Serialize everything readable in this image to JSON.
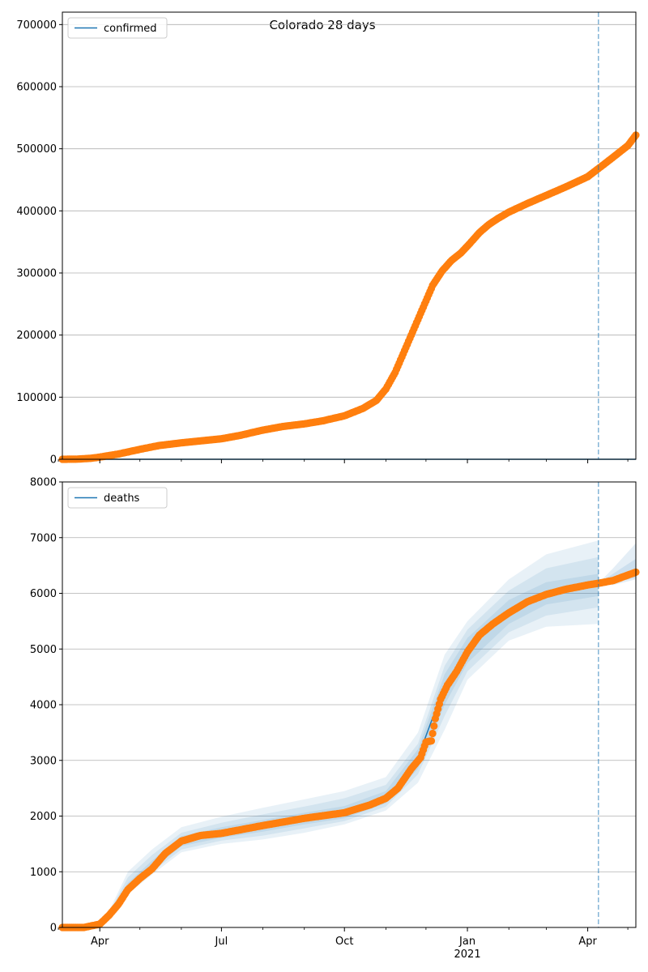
{
  "title": "Colorado 28 days",
  "colors": {
    "observed": "#ff7f0e",
    "fit": "#1f77b4",
    "band": "#1f77b4",
    "grid": "#b0b0b0",
    "axis": "#000000"
  },
  "x_axis": {
    "ticks": [
      {
        "date": "2020-04-01",
        "label": "Apr",
        "sub": ""
      },
      {
        "date": "2020-07-01",
        "label": "Jul",
        "sub": ""
      },
      {
        "date": "2020-10-01",
        "label": "Oct",
        "sub": ""
      },
      {
        "date": "2021-01-01",
        "label": "Jan",
        "sub": "2021"
      },
      {
        "date": "2021-04-01",
        "label": "Apr",
        "sub": ""
      }
    ],
    "minor_ticks": [
      "2020-03-01",
      "2020-05-01",
      "2020-06-01",
      "2020-08-01",
      "2020-09-01",
      "2020-11-01",
      "2020-12-01",
      "2021-02-01",
      "2021-03-01",
      "2021-05-01"
    ],
    "range": [
      "2020-03-04",
      "2021-05-07"
    ]
  },
  "chart_data": [
    {
      "type": "line",
      "legend": [
        "confirmed"
      ],
      "legend_position": "upper-left",
      "grid": "y",
      "ylim": [
        0,
        720000
      ],
      "yticks": [
        0,
        100000,
        200000,
        300000,
        400000,
        500000,
        600000,
        700000
      ],
      "vline": "2021-04-09",
      "series": [
        {
          "name": "confirmed",
          "role": "fit",
          "points": [
            [
              "2020-03-04",
              0
            ],
            [
              "2021-05-07",
              0
            ]
          ]
        },
        {
          "role": "observed",
          "points": [
            [
              "2020-03-04",
              0
            ],
            [
              "2020-03-15",
              200
            ],
            [
              "2020-03-25",
              1500
            ],
            [
              "2020-04-01",
              3500
            ],
            [
              "2020-04-15",
              8500
            ],
            [
              "2020-05-01",
              16000
            ],
            [
              "2020-05-15",
              22000
            ],
            [
              "2020-06-01",
              26500
            ],
            [
              "2020-06-15",
              29500
            ],
            [
              "2020-07-01",
              33000
            ],
            [
              "2020-07-15",
              38500
            ],
            [
              "2020-08-01",
              47000
            ],
            [
              "2020-08-15",
              52500
            ],
            [
              "2020-09-01",
              57000
            ],
            [
              "2020-09-15",
              62000
            ],
            [
              "2020-10-01",
              70000
            ],
            [
              "2020-10-15",
              82000
            ],
            [
              "2020-10-25",
              95000
            ],
            [
              "2020-11-01",
              113000
            ],
            [
              "2020-11-08",
              140000
            ],
            [
              "2020-11-15",
              175000
            ],
            [
              "2020-11-22",
              210000
            ],
            [
              "2020-11-29",
              245000
            ],
            [
              "2020-12-06",
              280000
            ],
            [
              "2020-12-13",
              303000
            ],
            [
              "2020-12-20",
              320000
            ],
            [
              "2020-12-27",
              332000
            ],
            [
              "2021-01-03",
              348000
            ],
            [
              "2021-01-10",
              365000
            ],
            [
              "2021-01-17",
              378000
            ],
            [
              "2021-01-24",
              388000
            ],
            [
              "2021-02-01",
              398000
            ],
            [
              "2021-02-15",
              412000
            ],
            [
              "2021-03-01",
              425000
            ],
            [
              "2021-03-15",
              438000
            ],
            [
              "2021-04-01",
              455000
            ],
            [
              "2021-04-15",
              478000
            ],
            [
              "2021-05-01",
              505000
            ],
            [
              "2021-05-07",
              522000
            ]
          ]
        }
      ]
    },
    {
      "type": "line",
      "legend": [
        "deaths"
      ],
      "legend_position": "upper-left",
      "grid": "y",
      "ylim": [
        0,
        8000
      ],
      "yticks": [
        0,
        1000,
        2000,
        3000,
        4000,
        5000,
        6000,
        7000,
        8000
      ],
      "vline": "2021-04-09",
      "series": [
        {
          "name": "deaths",
          "role": "fit",
          "points": [
            [
              "2020-03-04",
              0
            ],
            [
              "2020-03-20",
              0
            ],
            [
              "2020-04-01",
              60
            ],
            [
              "2020-04-08",
              220
            ],
            [
              "2020-04-15",
              420
            ],
            [
              "2020-04-22",
              700
            ],
            [
              "2020-05-01",
              900
            ],
            [
              "2020-05-10",
              1100
            ],
            [
              "2020-05-20",
              1350
            ],
            [
              "2020-06-01",
              1550
            ],
            [
              "2020-06-15",
              1650
            ],
            [
              "2020-07-01",
              1700
            ],
            [
              "2020-08-01",
              1820
            ],
            [
              "2020-09-01",
              1950
            ],
            [
              "2020-10-01",
              2050
            ],
            [
              "2020-10-20",
              2200
            ],
            [
              "2020-11-01",
              2350
            ],
            [
              "2020-11-15",
              2650
            ],
            [
              "2020-11-25",
              3050
            ],
            [
              "2020-12-05",
              3700
            ],
            [
              "2020-12-15",
              4300
            ],
            [
              "2020-12-25",
              4700
            ],
            [
              "2021-01-01",
              4950
            ],
            [
              "2021-01-10",
              5250
            ],
            [
              "2021-01-20",
              5450
            ],
            [
              "2021-02-01",
              5650
            ],
            [
              "2021-02-15",
              5850
            ],
            [
              "2021-03-01",
              5980
            ],
            [
              "2021-03-15",
              6070
            ],
            [
              "2021-04-01",
              6150
            ],
            [
              "2021-04-09",
              6180
            ],
            [
              "2021-04-20",
              6250
            ],
            [
              "2021-05-07",
              6380
            ]
          ]
        },
        {
          "role": "observed",
          "points": [
            [
              "2020-03-04",
              0
            ],
            [
              "2020-03-20",
              0
            ],
            [
              "2020-04-01",
              60
            ],
            [
              "2020-04-08",
              220
            ],
            [
              "2020-04-15",
              420
            ],
            [
              "2020-04-22",
              680
            ],
            [
              "2020-05-01",
              880
            ],
            [
              "2020-05-10",
              1050
            ],
            [
              "2020-05-20",
              1330
            ],
            [
              "2020-06-01",
              1550
            ],
            [
              "2020-06-15",
              1650
            ],
            [
              "2020-07-01",
              1690
            ],
            [
              "2020-08-01",
              1830
            ],
            [
              "2020-09-01",
              1960
            ],
            [
              "2020-10-01",
              2060
            ],
            [
              "2020-10-20",
              2200
            ],
            [
              "2020-11-01",
              2320
            ],
            [
              "2020-11-10",
              2500
            ],
            [
              "2020-11-20",
              2850
            ],
            [
              "2020-11-27",
              3050
            ],
            [
              "2020-12-01",
              3330
            ],
            [
              "2020-12-05",
              3350
            ],
            [
              "2020-12-08",
              3750
            ],
            [
              "2020-12-12",
              4100
            ],
            [
              "2020-12-17",
              4350
            ],
            [
              "2020-12-24",
              4600
            ],
            [
              "2021-01-01",
              4950
            ],
            [
              "2021-01-10",
              5250
            ],
            [
              "2021-01-20",
              5450
            ],
            [
              "2021-02-01",
              5650
            ],
            [
              "2021-02-15",
              5850
            ],
            [
              "2021-03-01",
              5980
            ],
            [
              "2021-03-15",
              6070
            ],
            [
              "2021-04-01",
              6150
            ],
            [
              "2021-04-09",
              6180
            ],
            [
              "2021-04-20",
              6230
            ],
            [
              "2021-05-07",
              6380
            ]
          ]
        }
      ],
      "bands": [
        {
          "points": [
            [
              "2020-04-08",
              180,
              300
            ],
            [
              "2020-04-22",
              600,
              1000
            ],
            [
              "2020-05-10",
              950,
              1400
            ],
            [
              "2020-06-01",
              1350,
              1800
            ],
            [
              "2020-07-01",
              1500,
              1990
            ],
            [
              "2020-08-01",
              1580,
              2150
            ],
            [
              "2020-09-01",
              1700,
              2300
            ],
            [
              "2020-10-01",
              1850,
              2450
            ],
            [
              "2020-11-01",
              2100,
              2700
            ],
            [
              "2020-11-25",
              2600,
              3500
            ],
            [
              "2020-12-15",
              3550,
              4900
            ],
            [
              "2021-01-01",
              4450,
              5500
            ],
            [
              "2021-02-01",
              5150,
              6250
            ],
            [
              "2021-03-01",
              5400,
              6700
            ],
            [
              "2021-04-09",
              5450,
              6950
            ]
          ]
        },
        {
          "points": [
            [
              "2020-04-08",
              190,
              270
            ],
            [
              "2020-04-22",
              630,
              900
            ],
            [
              "2020-05-10",
              1000,
              1300
            ],
            [
              "2020-06-01",
              1400,
              1700
            ],
            [
              "2020-07-01",
              1560,
              1880
            ],
            [
              "2020-08-01",
              1650,
              2030
            ],
            [
              "2020-09-01",
              1780,
              2170
            ],
            [
              "2020-10-01",
              1910,
              2320
            ],
            [
              "2020-11-01",
              2170,
              2560
            ],
            [
              "2020-11-25",
              2750,
              3300
            ],
            [
              "2020-12-15",
              3800,
              4700
            ],
            [
              "2021-01-01",
              4600,
              5350
            ],
            [
              "2021-02-01",
              5300,
              6050
            ],
            [
              "2021-03-01",
              5600,
              6450
            ],
            [
              "2021-04-09",
              5750,
              6650
            ]
          ]
        },
        {
          "points": [
            [
              "2020-04-08",
              200,
              250
            ],
            [
              "2020-04-22",
              660,
              800
            ],
            [
              "2020-05-10",
              1040,
              1200
            ],
            [
              "2020-06-01",
              1460,
              1640
            ],
            [
              "2020-07-01",
              1610,
              1800
            ],
            [
              "2020-08-01",
              1720,
              1930
            ],
            [
              "2020-09-01",
              1850,
              2060
            ],
            [
              "2020-10-01",
              1960,
              2180
            ],
            [
              "2020-11-01",
              2230,
              2450
            ],
            [
              "2020-11-25",
              2850,
              3200
            ],
            [
              "2020-12-15",
              4000,
              4550
            ],
            [
              "2021-01-01",
              4750,
              5200
            ],
            [
              "2021-02-01",
              5450,
              5880
            ],
            [
              "2021-03-01",
              5800,
              6200
            ],
            [
              "2021-04-09",
              5950,
              6350
            ]
          ]
        }
      ],
      "forecast_bands": [
        {
          "points": [
            [
              "2021-04-20",
              6150,
              6450
            ],
            [
              "2021-05-07",
              6250,
              6900
            ]
          ]
        },
        {
          "points": [
            [
              "2021-04-20",
              6190,
              6350
            ],
            [
              "2021-05-07",
              6280,
              6620
            ]
          ]
        }
      ]
    }
  ]
}
